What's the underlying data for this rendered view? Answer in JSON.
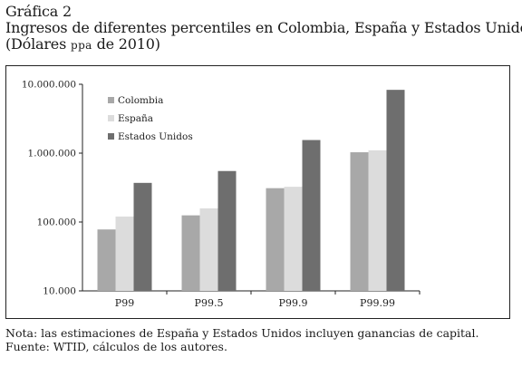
{
  "figure": {
    "label": "Gráfica 2",
    "title": "Ingresos de diferentes percentiles en Colombia, España y Estados Unidos",
    "subtitle_open": "(Dólares ",
    "subtitle_unit": "ppa",
    "subtitle_close": " de 2010)"
  },
  "notes": {
    "note": "Nota: las estimaciones de España y Estados Unidos incluyen ganancias de capital.",
    "source": "Fuente: WTID, cálculos de los autores."
  },
  "chart_data": {
    "type": "bar",
    "scale": "log",
    "categories": [
      "P99",
      "P99.5",
      "P99.9",
      "P99.99"
    ],
    "series": [
      {
        "name": "Colombia",
        "color": "#a8a8a8",
        "values": [
          78000,
          125000,
          310000,
          1030000
        ]
      },
      {
        "name": "España",
        "color": "#dcdcdc",
        "values": [
          120000,
          158000,
          325000,
          1100000
        ]
      },
      {
        "name": "Estados Unidos",
        "color": "#6e6e6e",
        "values": [
          370000,
          550000,
          1550000,
          8300000
        ]
      }
    ],
    "ylim": [
      10000,
      10000000
    ],
    "yticks": [
      10000,
      100000,
      1000000,
      10000000
    ],
    "ytick_labels": [
      "10.000",
      "100.000",
      "1.000.000",
      "10.000.000"
    ],
    "grid": false,
    "legend_position": "top-left"
  }
}
